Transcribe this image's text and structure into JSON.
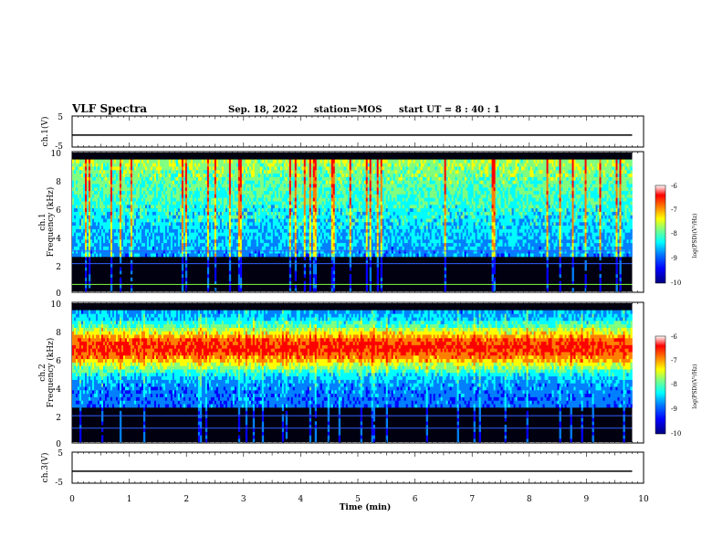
{
  "header": {
    "title": "VLF Spectra",
    "date": "Sep. 18, 2022",
    "station": "station=MOS",
    "start": "start  UT =  8 : 40 : 1"
  },
  "chart_data": [
    {
      "type": "line",
      "panel": "ch1-voltage",
      "ylabel": "ch.1(V)",
      "ylim": [
        -5,
        5
      ],
      "yticks": [
        "5",
        "-5"
      ],
      "x": [
        0,
        9.8
      ],
      "values": [
        -1.5,
        -1.5
      ]
    },
    {
      "type": "heatmap",
      "panel": "ch1-spectrogram",
      "ylabel": "ch.1\nFrequency (kHz)",
      "ylim": [
        0,
        10
      ],
      "yticks": [
        "0",
        "2",
        "4",
        "6",
        "8",
        "10"
      ],
      "x_range_min": [
        0,
        9.8
      ],
      "colorbar": {
        "label": "log(PSD)(V²/Hz)",
        "range": [
          -10,
          -6
        ],
        "ticks": [
          "-10",
          "-9",
          "-8",
          "-7",
          "-6"
        ]
      },
      "dominant_band_khz": [
        2.5,
        9.5
      ],
      "constant_lines_khz": [
        0.5,
        2.0,
        2.9
      ]
    },
    {
      "type": "heatmap",
      "panel": "ch2-spectrogram",
      "ylabel": "ch.2\nFrequency (kHz)",
      "ylim": [
        0,
        10
      ],
      "yticks": [
        "0",
        "2",
        "4",
        "6",
        "8",
        "10"
      ],
      "x_range_min": [
        0,
        9.8
      ],
      "colorbar": {
        "label": "log(PSD)(V²/Hz)",
        "range": [
          -10,
          -6
        ],
        "ticks": [
          "-10",
          "-9",
          "-8",
          "-7",
          "-6"
        ]
      },
      "peak_band_khz": [
        6,
        7.5
      ],
      "constant_lines_khz": [
        1.0,
        1.9
      ]
    },
    {
      "type": "line",
      "panel": "ch3-voltage",
      "ylabel": "ch.3(V)",
      "ylim": [
        -5,
        5
      ],
      "yticks": [
        "5",
        "-5"
      ],
      "x": [
        0,
        9.8
      ],
      "values": [
        -1.5,
        -1.5
      ]
    }
  ],
  "xaxis": {
    "label": "Time  (min)",
    "xlim": [
      0,
      10
    ],
    "ticks": [
      "0",
      "1",
      "2",
      "3",
      "4",
      "5",
      "6",
      "7",
      "8",
      "9",
      "10"
    ]
  },
  "colormap": [
    "#00007f",
    "#0000ff",
    "#0080ff",
    "#00ffff",
    "#80ff80",
    "#ffff00",
    "#ff8000",
    "#ff0000",
    "#ffffff"
  ]
}
